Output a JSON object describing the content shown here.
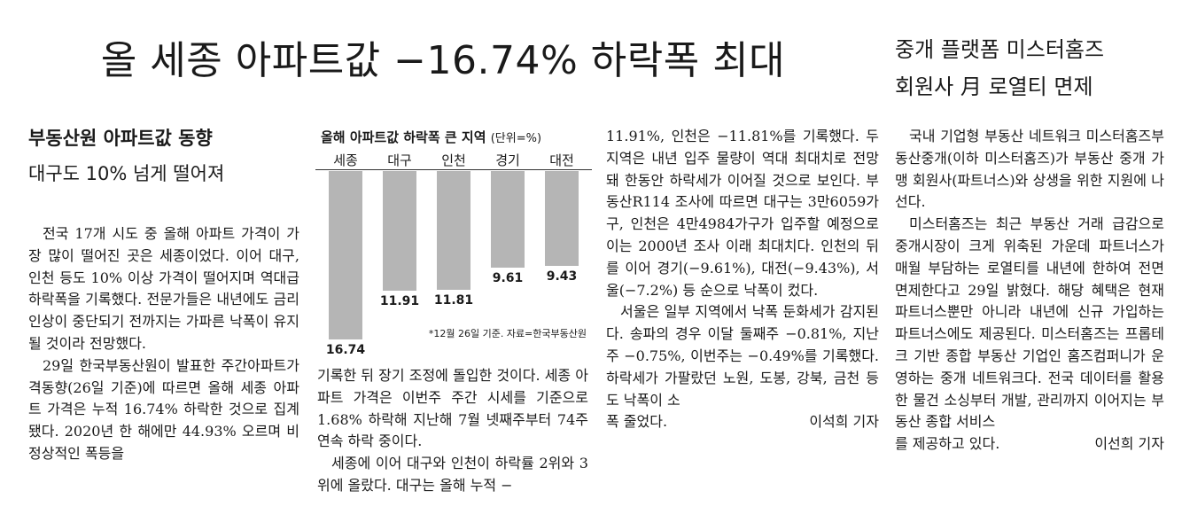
{
  "headline": "올 세종 아파트값 −16.74% 하락폭 최대",
  "sidebar_article": {
    "title_line1": "중개 플랫폼 미스터홈즈",
    "title_line2": "회원사 月 로열티 면제",
    "paragraphs": [
      "국내 기업형 부동산 네트워크 미스터홈즈부동산중개(이하 미스터홈즈)가 부동산 중개 가맹 회원사(파트너스)와 상생을 위한 지원에 나선다.",
      "미스터홈즈는 최근 부동산 거래 급감으로 중개시장이 크게 위축된 가운데 파트너스가 매월 부담하는 로열티를 내년에 한하여 전면 면제한다고 29일 밝혔다. 해당 혜택은 현재 파트너스뿐만 아니라 내년에 신규 가입하는 파트너스에도 제공된다. 미스터홈즈는 프롭테크 기반 종합 부동산 기업인 홈즈컴퍼니가 운영하는 중개 네트워크다. 전국 데이터를 활용한 물건 소싱부터 개발, 관리까지 이어지는 부동산 종합 서비스"
    ],
    "last_line": "를 제공하고 있다.",
    "byline": "이선희 기자"
  },
  "main_article": {
    "subtitle1": "부동산원 아파트값 동향",
    "subtitle2": "대구도 10% 넘게 떨어져",
    "col1_paragraphs": [
      "전국 17개 시도 중 올해 아파트 가격이 가장 많이 떨어진 곳은 세종이었다. 이어 대구, 인천 등도 10% 이상 가격이 떨어지며 역대급 하락폭을 기록했다. 전문가들은 내년에도 금리 인상이 중단되기 전까지는 가파른 낙폭이 유지될 것이라 전망했다.",
      "29일 한국부동산원이 발표한 주간아파트가격동향(26일 기준)에 따르면 올해 세종 아파트 가격은 누적 16.74% 하락한 것으로 집계됐다. 2020년 한 해에만 44.93% 오르며 비정상적인 폭등을"
    ],
    "col2_paragraphs": [
      "기록한 뒤 장기 조정에 돌입한 것이다. 세종 아파트 가격은 이번주 주간 시세를 기준으로 1.68% 하락해 지난해 7월 넷째주부터 74주 연속 하락 중이다.",
      "세종에 이어 대구와 인천이 하락률 2위와 3위에 올랐다. 대구는 올해 누적 −"
    ],
    "col3_paragraphs": [
      "11.91%, 인천은 −11.81%를 기록했다. 두 지역은 내년 입주 물량이 역대 최대치로 전망돼 한동안 하락세가 이어질 것으로 보인다. 부동산R114 조사에 따르면 대구는 3만6059가구, 인천은 4만4984가구가 입주할 예정으로 이는 2000년 조사 이래 최대치다. 인천의 뒤를 이어 경기(−9.61%), 대전(−9.43%), 서울(−7.2%) 등 순으로 낙폭이 컸다.",
      "서울은 일부 지역에서 낙폭 둔화세가 감지된다. 송파의 경우 이달 둘째주 −0.81%, 지난주 −0.75%, 이번주는 −0.49%를 기록했다. 하락세가 가팔랐던 노원, 도봉, 강북, 금천 등도 낙폭이 소"
    ],
    "col3_last_line": "폭 줄었다.",
    "byline": "이석희 기자"
  },
  "chart_data": {
    "type": "bar",
    "title": "올해 아파트값 하락폭 큰 지역",
    "unit": "(단위=%)",
    "categories": [
      "세종",
      "대구",
      "인천",
      "경기",
      "대전"
    ],
    "values": [
      16.74,
      11.91,
      11.81,
      9.61,
      9.43
    ],
    "value_labels": [
      "16.74",
      "11.91",
      "11.81",
      "9.61",
      "9.43"
    ],
    "orientation": "downward",
    "bar_color": "#b5b5b5",
    "ylim": [
      0,
      16.74
    ],
    "note": "*12월 26일 기준. 자료=한국부동산원"
  }
}
